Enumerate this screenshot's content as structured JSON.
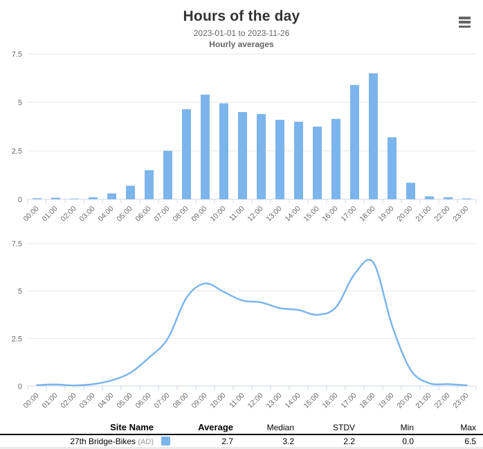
{
  "header": {
    "title": "Hours of the day",
    "subtitle_range": "2023-01-01 to 2023-11-26",
    "subtitle_label": "Hourly averages",
    "menu_icon": "hamburger-menu-icon"
  },
  "colors": {
    "series": "#7cb5ec",
    "grid": "#e6e6e6",
    "axis_line": "#ccd6eb",
    "tick_label": "#666666",
    "title": "#333333"
  },
  "chart_data": [
    {
      "type": "bar",
      "title": "Hours of the day",
      "subtitle": "2023-01-01 to 2023-11-26 / Hourly averages",
      "categories": [
        "00:00",
        "01:00",
        "02:00",
        "03:00",
        "04:00",
        "05:00",
        "06:00",
        "07:00",
        "08:00",
        "09:00",
        "10:00",
        "11:00",
        "12:00",
        "13:00",
        "14:00",
        "15:00",
        "16:00",
        "17:00",
        "18:00",
        "19:00",
        "20:00",
        "21:00",
        "22:00",
        "23:00"
      ],
      "values": [
        0.05,
        0.08,
        0.03,
        0.1,
        0.3,
        0.7,
        1.5,
        2.5,
        4.65,
        5.4,
        4.95,
        4.5,
        4.4,
        4.1,
        4.0,
        3.75,
        4.15,
        5.9,
        6.5,
        3.2,
        0.85,
        0.15,
        0.1,
        0.04
      ],
      "xlabel": "",
      "ylabel": "",
      "ylim": [
        0,
        7.5
      ],
      "yticks": [
        0,
        2.5,
        5,
        7.5
      ],
      "grid": true,
      "legend": false
    },
    {
      "type": "line",
      "title": "",
      "categories": [
        "00:00",
        "01:00",
        "02:00",
        "03:00",
        "04:00",
        "05:00",
        "06:00",
        "07:00",
        "08:00",
        "09:00",
        "10:00",
        "11:00",
        "12:00",
        "13:00",
        "14:00",
        "15:00",
        "16:00",
        "17:00",
        "18:00",
        "19:00",
        "20:00",
        "21:00",
        "22:00",
        "23:00"
      ],
      "values": [
        0.05,
        0.08,
        0.03,
        0.1,
        0.3,
        0.7,
        1.5,
        2.5,
        4.65,
        5.4,
        4.95,
        4.5,
        4.4,
        4.1,
        4.0,
        3.75,
        4.15,
        5.9,
        6.5,
        3.2,
        0.85,
        0.15,
        0.1,
        0.04
      ],
      "xlabel": "",
      "ylabel": "",
      "ylim": [
        0,
        7.5
      ],
      "yticks": [
        0,
        2.5,
        5,
        7.5
      ],
      "grid": true,
      "legend": false,
      "smooth": true
    }
  ],
  "table": {
    "columns": [
      "Site Name",
      "Average",
      "Median",
      "STDV",
      "Min",
      "Max"
    ],
    "rows": [
      {
        "site_name": "27th Bridge-Bikes",
        "site_suffix": "(AD)",
        "swatch_color": "#7cb5ec",
        "average": "2.7",
        "median": "3.2",
        "stdv": "2.2",
        "min": "0.0",
        "max": "6.5"
      }
    ]
  }
}
